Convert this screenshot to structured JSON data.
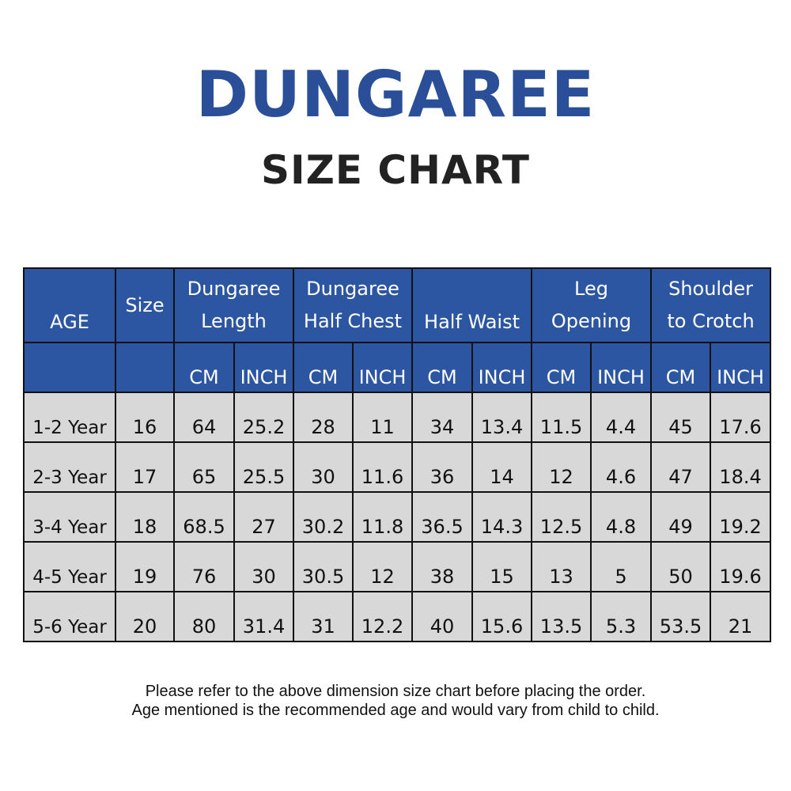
{
  "title": "DUNGAREE",
  "subtitle": "SIZE CHART",
  "table": {
    "headers": {
      "age": "AGE",
      "size": "Size",
      "groups": [
        {
          "line1": "Dungaree",
          "line2": "Length"
        },
        {
          "line1": "Dungaree",
          "line2": "Half Chest"
        },
        {
          "line1": "Half Waist",
          "line2": ""
        },
        {
          "line1": "Leg",
          "line2": "Opening"
        },
        {
          "line1": "Shoulder",
          "line2": "to Crotch"
        }
      ],
      "units": [
        "CM",
        "INCH",
        "CM",
        "INCH",
        "CM",
        "INCH",
        "CM",
        "INCH",
        "CM",
        "INCH"
      ]
    },
    "rows": [
      {
        "age": "1-2 Year",
        "size": "16",
        "values": [
          "64",
          "25.2",
          "28",
          "11",
          "34",
          "13.4",
          "11.5",
          "4.4",
          "45",
          "17.6"
        ]
      },
      {
        "age": "2-3 Year",
        "size": "17",
        "values": [
          "65",
          "25.5",
          "30",
          "11.6",
          "36",
          "14",
          "12",
          "4.6",
          "47",
          "18.4"
        ]
      },
      {
        "age": "3-4 Year",
        "size": "18",
        "values": [
          "68.5",
          "27",
          "30.2",
          "11.8",
          "36.5",
          "14.3",
          "12.5",
          "4.8",
          "49",
          "19.2"
        ]
      },
      {
        "age": "4-5 Year",
        "size": "19",
        "values": [
          "76",
          "30",
          "30.5",
          "12",
          "38",
          "15",
          "13",
          "5",
          "50",
          "19.6"
        ]
      },
      {
        "age": "5-6 Year",
        "size": "20",
        "values": [
          "80",
          "31.4",
          "31",
          "12.2",
          "40",
          "15.6",
          "13.5",
          "5.3",
          "53.5",
          "21"
        ]
      }
    ]
  },
  "notes": {
    "line1": "Please refer to the above dimension size chart before placing the order.",
    "line2": "Age mentioned is the recommended age and would vary from child to child."
  },
  "colors": {
    "title": "#2a4f98",
    "header_bg": "#2c55a2",
    "cell_bg": "#d8d8d8"
  }
}
